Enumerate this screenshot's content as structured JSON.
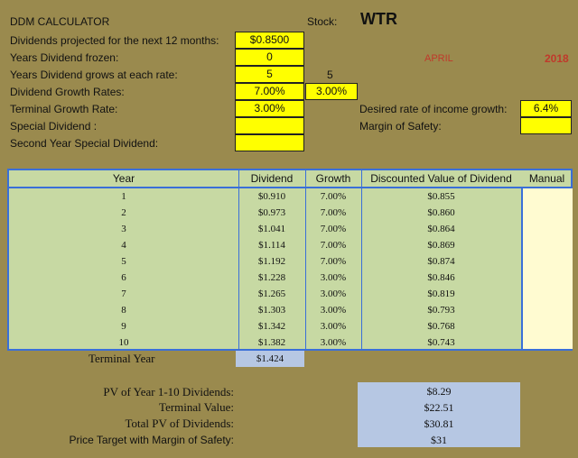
{
  "title": "DDM CALCULATOR",
  "stock_label": "Stock:",
  "stock": "WTR",
  "month": "APRIL",
  "year": "2018",
  "inputs": {
    "dividends_label": "Dividends projected for the next 12 months:",
    "dividends_value": "$0.8500",
    "frozen_label": "Years Dividend frozen:",
    "frozen_value": "0",
    "grows_label": "Years Dividend grows at each rate:",
    "grows_value_1": "5",
    "grows_value_2": "5",
    "growth_rates_label": "Dividend Growth Rates:",
    "growth_rate_1": "7.00%",
    "growth_rate_2": "3.00%",
    "terminal_label": "Terminal Growth Rate:",
    "terminal_value": "3.00%",
    "special_label": "Special Dividend :",
    "special_value": "",
    "second_special_label": "Second Year Special Dividend:",
    "second_special_value": "",
    "desired_label": "Desired rate of income growth:",
    "desired_value": "6.4%",
    "margin_label": "Margin of Safety:",
    "margin_value": ""
  },
  "table": {
    "headers": [
      "Year",
      "Dividend",
      "Growth",
      "Discounted Value of Dividend",
      "Manual"
    ],
    "rows": [
      {
        "year": "1",
        "dividend": "$0.910",
        "growth": "7.00%",
        "discounted": "$0.855"
      },
      {
        "year": "2",
        "dividend": "$0.973",
        "growth": "7.00%",
        "discounted": "$0.860"
      },
      {
        "year": "3",
        "dividend": "$1.041",
        "growth": "7.00%",
        "discounted": "$0.864"
      },
      {
        "year": "4",
        "dividend": "$1.114",
        "growth": "7.00%",
        "discounted": "$0.869"
      },
      {
        "year": "5",
        "dividend": "$1.192",
        "growth": "7.00%",
        "discounted": "$0.874"
      },
      {
        "year": "6",
        "dividend": "$1.228",
        "growth": "3.00%",
        "discounted": "$0.846"
      },
      {
        "year": "7",
        "dividend": "$1.265",
        "growth": "3.00%",
        "discounted": "$0.819"
      },
      {
        "year": "8",
        "dividend": "$1.303",
        "growth": "3.00%",
        "discounted": "$0.793"
      },
      {
        "year": "9",
        "dividend": "$1.342",
        "growth": "3.00%",
        "discounted": "$0.768"
      },
      {
        "year": "10",
        "dividend": "$1.382",
        "growth": "3.00%",
        "discounted": "$0.743"
      }
    ],
    "terminal_year_label": "Terminal Year",
    "terminal_year_dividend": "$1.424"
  },
  "summary": {
    "pv_label": "PV of Year 1-10 Dividends:",
    "pv_value": "$8.29",
    "terminal_label": "Terminal Value:",
    "terminal_value": "$22.51",
    "total_label": "Total PV of Dividends:",
    "total_value": "$30.81",
    "target_label": "Price Target with Margin of Safety:",
    "target_value": "$31"
  },
  "colors": {
    "background": "#9a8a4e",
    "input_yellow": "#ffff00",
    "table_green": "#c7d9a3",
    "table_border_blue": "#3a6fd8",
    "summary_blue": "#b6c7e3",
    "date_red": "#c0392b"
  }
}
